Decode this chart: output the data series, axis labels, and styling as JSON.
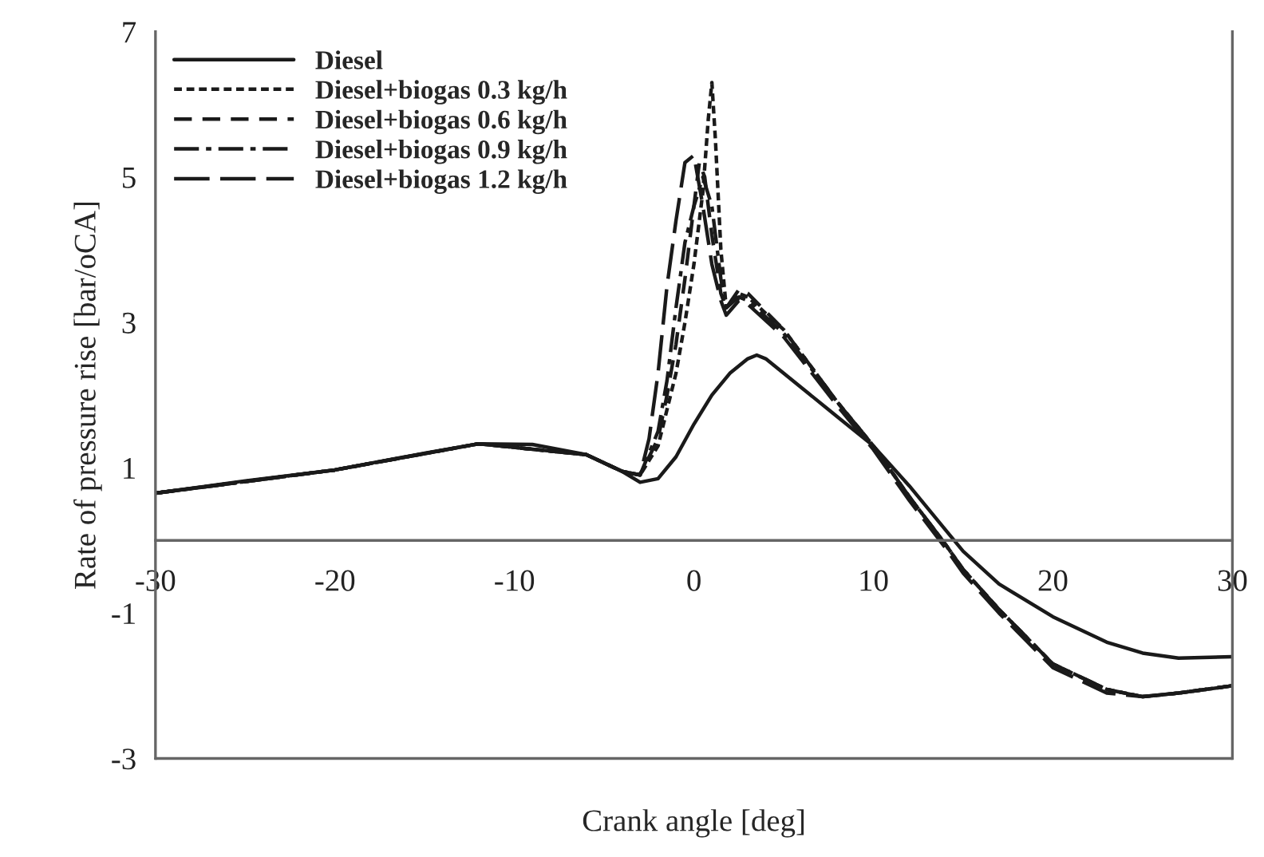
{
  "chart_data": {
    "type": "line",
    "xlabel": "Crank angle [deg]",
    "ylabel": "Rate of pressure rise [bar/oCA]",
    "xlim": [
      -30,
      30
    ],
    "xticks": [
      -30,
      -20,
      -10,
      0,
      10,
      20,
      30
    ],
    "ylim": [
      -3,
      7
    ],
    "yticks": [
      -3,
      -1,
      1,
      3,
      5,
      7
    ],
    "grid": false,
    "legend": "top left",
    "marker": "none",
    "series": [
      {
        "name": "Diesel",
        "color": "#1a1a1a",
        "line_style": "solid",
        "x": [
          -30,
          -25,
          -20,
          -15,
          -12,
          -9,
          -6,
          -4,
          -3,
          -2,
          -1,
          0,
          1,
          2,
          3,
          3.5,
          4,
          5,
          6,
          8,
          10,
          12,
          14,
          15,
          17,
          20,
          23,
          25,
          27,
          30
        ],
        "values": [
          0.65,
          0.82,
          0.97,
          1.2,
          1.33,
          1.32,
          1.18,
          0.95,
          0.8,
          0.85,
          1.15,
          1.6,
          2.0,
          2.3,
          2.5,
          2.55,
          2.5,
          2.3,
          2.1,
          1.7,
          1.3,
          0.75,
          0.15,
          -0.15,
          -0.6,
          -1.05,
          -1.4,
          -1.55,
          -1.62,
          -1.6
        ]
      },
      {
        "name": "Diesel+biogas 0.3 kg/h",
        "color": "#1a1a1a",
        "line_style": "dotted",
        "x": [
          -30,
          -20,
          -12,
          -6,
          -4,
          -3,
          -2,
          -1.5,
          -1,
          -0.5,
          0,
          0.5,
          0.8,
          1.0,
          1.2,
          1.5,
          1.8,
          2.5,
          3,
          5,
          8,
          10,
          12,
          14,
          15,
          17,
          20,
          23,
          25,
          27,
          30
        ],
        "values": [
          0.65,
          0.97,
          1.33,
          1.18,
          0.95,
          0.9,
          1.3,
          1.8,
          2.3,
          3.0,
          3.8,
          4.8,
          5.8,
          6.3,
          5.5,
          4.0,
          3.2,
          3.4,
          3.35,
          2.9,
          1.9,
          1.3,
          0.6,
          -0.05,
          -0.4,
          -0.95,
          -1.7,
          -2.05,
          -2.15,
          -2.1,
          -2.0
        ]
      },
      {
        "name": "Diesel+biogas 0.6 kg/h",
        "color": "#1a1a1a",
        "line_style": "dashed",
        "x": [
          -30,
          -20,
          -12,
          -6,
          -4,
          -3,
          -2,
          -1.5,
          -1,
          -0.5,
          0,
          0.3,
          0.6,
          1.0,
          1.5,
          1.8,
          2.5,
          3,
          5,
          8,
          10,
          12,
          14,
          15,
          17,
          20,
          23,
          25,
          27,
          30
        ],
        "values": [
          0.65,
          0.97,
          1.33,
          1.18,
          0.95,
          0.9,
          1.4,
          2.0,
          2.7,
          3.6,
          4.6,
          5.2,
          5.0,
          4.2,
          3.4,
          3.2,
          3.45,
          3.4,
          2.9,
          1.9,
          1.3,
          0.6,
          -0.05,
          -0.4,
          -0.95,
          -1.7,
          -2.05,
          -2.15,
          -2.1,
          -2.0
        ]
      },
      {
        "name": "Diesel+biogas 0.9 kg/h",
        "color": "#1a1a1a",
        "line_style": "dashdot",
        "x": [
          -30,
          -20,
          -12,
          -6,
          -4,
          -3,
          -2,
          -1.5,
          -1,
          -0.5,
          0,
          0.5,
          1.0,
          1.5,
          1.8,
          2.5,
          3,
          5,
          8,
          10,
          12,
          14,
          15,
          17,
          20,
          23,
          25,
          27,
          30
        ],
        "values": [
          0.65,
          0.97,
          1.33,
          1.18,
          0.95,
          0.9,
          1.5,
          2.2,
          3.2,
          4.1,
          4.6,
          5.0,
          4.6,
          3.6,
          3.2,
          3.35,
          3.3,
          2.85,
          1.9,
          1.3,
          0.6,
          -0.05,
          -0.4,
          -0.95,
          -1.7,
          -2.05,
          -2.15,
          -2.1,
          -2.0
        ]
      },
      {
        "name": "Diesel+biogas 1.2 kg/h",
        "color": "#1a1a1a",
        "line_style": "longdash",
        "x": [
          -30,
          -20,
          -12,
          -6,
          -4,
          -3,
          -2.5,
          -2,
          -1.5,
          -1,
          -0.5,
          0,
          0.5,
          1.0,
          1.5,
          1.8,
          2.5,
          3,
          5,
          8,
          10,
          12,
          14,
          15,
          17,
          20,
          23,
          25,
          27,
          30
        ],
        "values": [
          0.65,
          0.97,
          1.33,
          1.18,
          0.95,
          0.9,
          1.4,
          2.3,
          3.5,
          4.4,
          5.2,
          5.3,
          4.6,
          3.8,
          3.3,
          3.1,
          3.3,
          3.25,
          2.8,
          1.85,
          1.25,
          0.55,
          -0.1,
          -0.45,
          -1.0,
          -1.75,
          -2.1,
          -2.15,
          -2.1,
          -2.0
        ]
      }
    ]
  }
}
